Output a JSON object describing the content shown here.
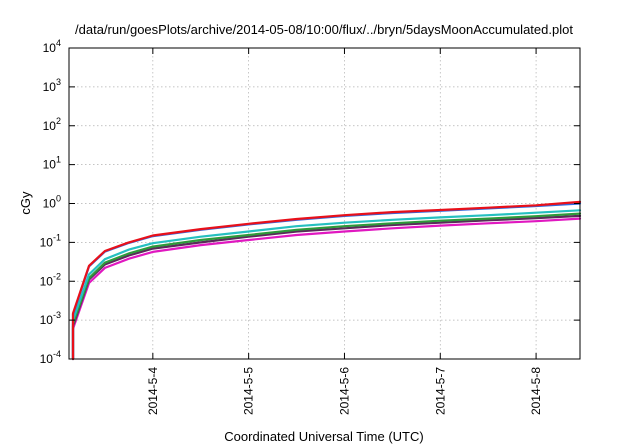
{
  "chart_data": {
    "type": "line",
    "title": "/data/run/goesPlots/archive/2014-05-08/10:00/flux/../bryn/5daysMoonAccumulated.plot",
    "xlabel": "Coordinated Universal Time (UTC)",
    "ylabel": "cGy",
    "x_ticks": [
      "2014-5-4",
      "2014-5-5",
      "2014-5-6",
      "2014-5-7",
      "2014-5-8"
    ],
    "xlim": [
      "2014-05-03T03:00",
      "2014-05-08T11:00"
    ],
    "y_scale": "log",
    "ylim": [
      0.0001,
      10000
    ],
    "y_ticks": [
      {
        "base": "10",
        "exp": "-4"
      },
      {
        "base": "10",
        "exp": "-3"
      },
      {
        "base": "10",
        "exp": "-2"
      },
      {
        "base": "10",
        "exp": "-1"
      },
      {
        "base": "10",
        "exp": "0"
      },
      {
        "base": "10",
        "exp": "1"
      },
      {
        "base": "10",
        "exp": "2"
      },
      {
        "base": "10",
        "exp": "3"
      },
      {
        "base": "10",
        "exp": "4"
      }
    ],
    "grid": true,
    "x": [
      "2014-05-03T04:00",
      "2014-05-03T08:00",
      "2014-05-03T12:00",
      "2014-05-03T18:00",
      "2014-05-04T00:00",
      "2014-05-04T12:00",
      "2014-05-05T00:00",
      "2014-05-05T12:00",
      "2014-05-06T00:00",
      "2014-05-06T12:00",
      "2014-05-07T00:00",
      "2014-05-07T12:00",
      "2014-05-08T00:00",
      "2014-05-08T11:00"
    ],
    "series": [
      {
        "color": "#e8101a",
        "values": [
          0.0015,
          0.025,
          0.06,
          0.1,
          0.15,
          0.22,
          0.3,
          0.4,
          0.5,
          0.6,
          0.68,
          0.78,
          0.9,
          1.1
        ]
      },
      {
        "color": "#2f6ae0",
        "values": [
          0.0014,
          0.024,
          0.058,
          0.097,
          0.145,
          0.21,
          0.29,
          0.38,
          0.48,
          0.57,
          0.65,
          0.75,
          0.86,
          1.0
        ]
      },
      {
        "color": "#25c0c0",
        "values": [
          0.001,
          0.015,
          0.037,
          0.065,
          0.095,
          0.14,
          0.19,
          0.26,
          0.32,
          0.38,
          0.44,
          0.5,
          0.58,
          0.67
        ]
      },
      {
        "color": "#2e9a3a",
        "values": [
          0.0008,
          0.012,
          0.03,
          0.052,
          0.078,
          0.115,
          0.155,
          0.21,
          0.26,
          0.31,
          0.36,
          0.41,
          0.47,
          0.55
        ]
      },
      {
        "color": "#5a2a5a",
        "values": [
          0.0007,
          0.011,
          0.027,
          0.046,
          0.069,
          0.1,
          0.14,
          0.19,
          0.23,
          0.28,
          0.32,
          0.37,
          0.42,
          0.48
        ]
      },
      {
        "color": "#e018c0",
        "values": [
          0.0006,
          0.009,
          0.022,
          0.038,
          0.057,
          0.085,
          0.115,
          0.155,
          0.19,
          0.23,
          0.27,
          0.31,
          0.35,
          0.41
        ]
      }
    ]
  }
}
